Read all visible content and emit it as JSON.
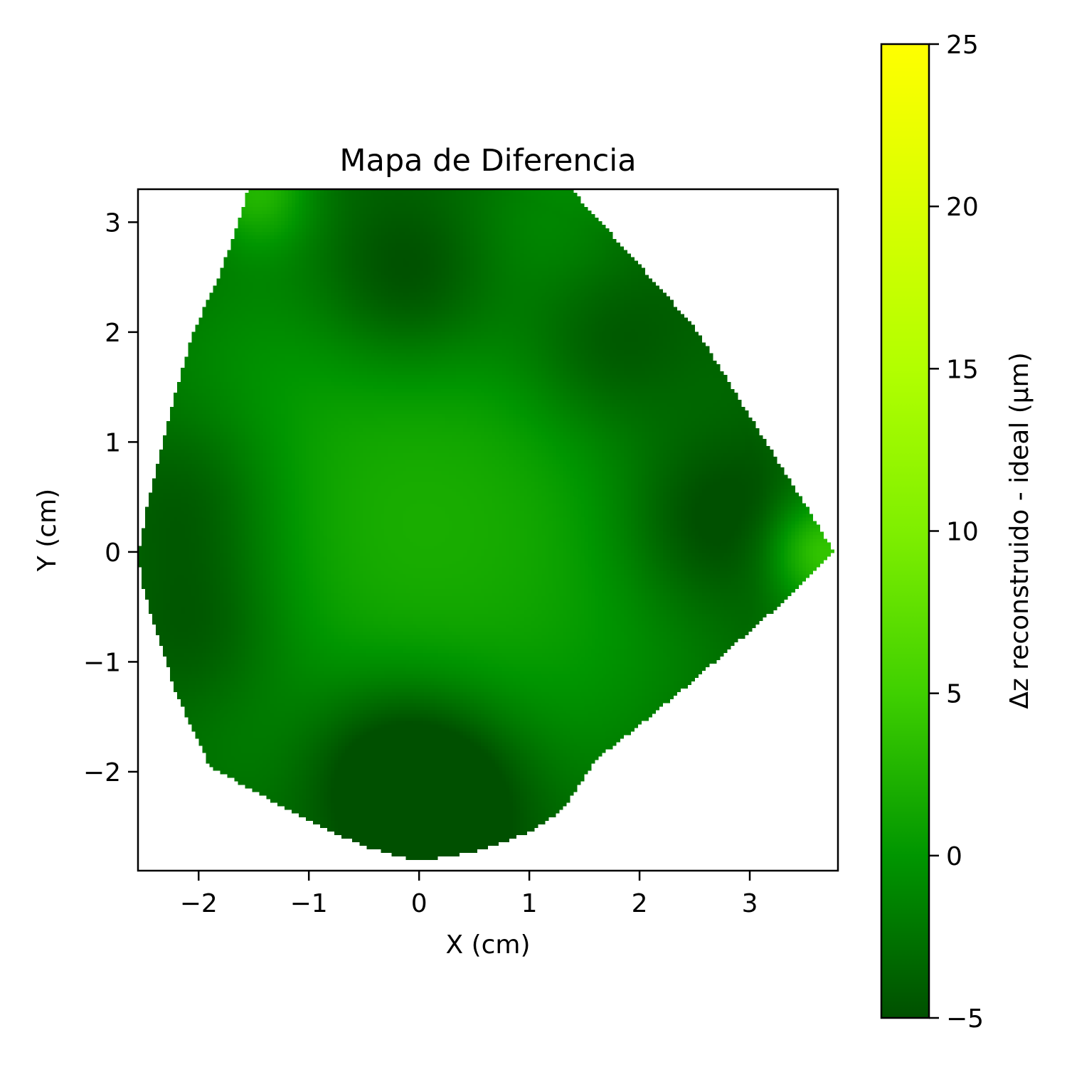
{
  "chart_data": {
    "type": "heatmap",
    "title": "Mapa de Diferencia",
    "xlabel": "X (cm)",
    "ylabel": "Y (cm)",
    "xlim": [
      -2.55,
      3.8
    ],
    "ylim": [
      -2.9,
      3.3
    ],
    "xticks": [
      -2,
      -1,
      0,
      1,
      2,
      3
    ],
    "yticks": [
      -2,
      -1,
      0,
      1,
      2,
      3
    ],
    "xtick_labels": [
      "−2",
      "−1",
      "0",
      "1",
      "2",
      "3"
    ],
    "ytick_labels": [
      "−2",
      "−1",
      "0",
      "1",
      "2",
      "3"
    ],
    "grid": false,
    "colorbar": {
      "label": "Δz reconstruido - ideal (µm)",
      "range": [
        -5,
        25
      ],
      "ticks": [
        -5,
        0,
        5,
        10,
        15,
        20,
        25
      ],
      "tick_labels": [
        "−5",
        "0",
        "5",
        "10",
        "15",
        "20",
        "25"
      ],
      "colors": [
        {
          "value": -5,
          "color": "#005000"
        },
        {
          "value": 0,
          "color": "#009600"
        },
        {
          "value": 5,
          "color": "#3fd000"
        },
        {
          "value": 10,
          "color": "#7fef00"
        },
        {
          "value": 15,
          "color": "#b2ff00"
        },
        {
          "value": 20,
          "color": "#d9ff00"
        },
        {
          "value": 25,
          "color": "#ffff00"
        }
      ]
    },
    "data_region_outline": [
      [
        -1.55,
        3.3
      ],
      [
        1.38,
        3.3
      ],
      [
        2.5,
        2.05
      ],
      [
        3.18,
        0.95
      ],
      [
        3.77,
        0.0
      ],
      [
        3.2,
        -0.55
      ],
      [
        2.4,
        -1.25
      ],
      [
        1.6,
        -1.9
      ],
      [
        1.3,
        -2.35
      ],
      [
        1.0,
        -2.55
      ],
      [
        0.55,
        -2.72
      ],
      [
        0.0,
        -2.82
      ],
      [
        -0.5,
        -2.68
      ],
      [
        -1.0,
        -2.45
      ],
      [
        -1.5,
        -2.18
      ],
      [
        -1.9,
        -1.95
      ],
      [
        -2.2,
        -1.3
      ],
      [
        -2.5,
        -0.35
      ],
      [
        -2.55,
        -0.05
      ],
      [
        -2.45,
        0.5
      ],
      [
        -2.25,
        1.3
      ],
      [
        -2.05,
        2.0
      ],
      [
        -1.8,
        2.55
      ],
      [
        -1.6,
        3.1
      ]
    ],
    "field": {
      "base": 1,
      "radial_gradient": {
        "center": [
          0.0,
          0.25
        ],
        "peak": 2,
        "edge": -2.5,
        "radius": 3.1
      },
      "extrema": [
        {
          "x": -0.1,
          "y": 2.45,
          "value": -4
        },
        {
          "x": 2.6,
          "y": 0.3,
          "value": -3.5
        },
        {
          "x": 1.7,
          "y": 1.85,
          "value": -3
        },
        {
          "x": -0.3,
          "y": -1.95,
          "value": -4
        },
        {
          "x": 0.3,
          "y": -2.2,
          "value": -4
        },
        {
          "x": -2.05,
          "y": 0.5,
          "value": -3
        },
        {
          "x": -1.95,
          "y": -0.7,
          "value": -3
        },
        {
          "x": 3.65,
          "y": 0.0,
          "value": 9
        },
        {
          "x": -1.45,
          "y": 3.25,
          "value": 7
        },
        {
          "x": 1.3,
          "y": 3.2,
          "value": 3
        }
      ]
    }
  }
}
